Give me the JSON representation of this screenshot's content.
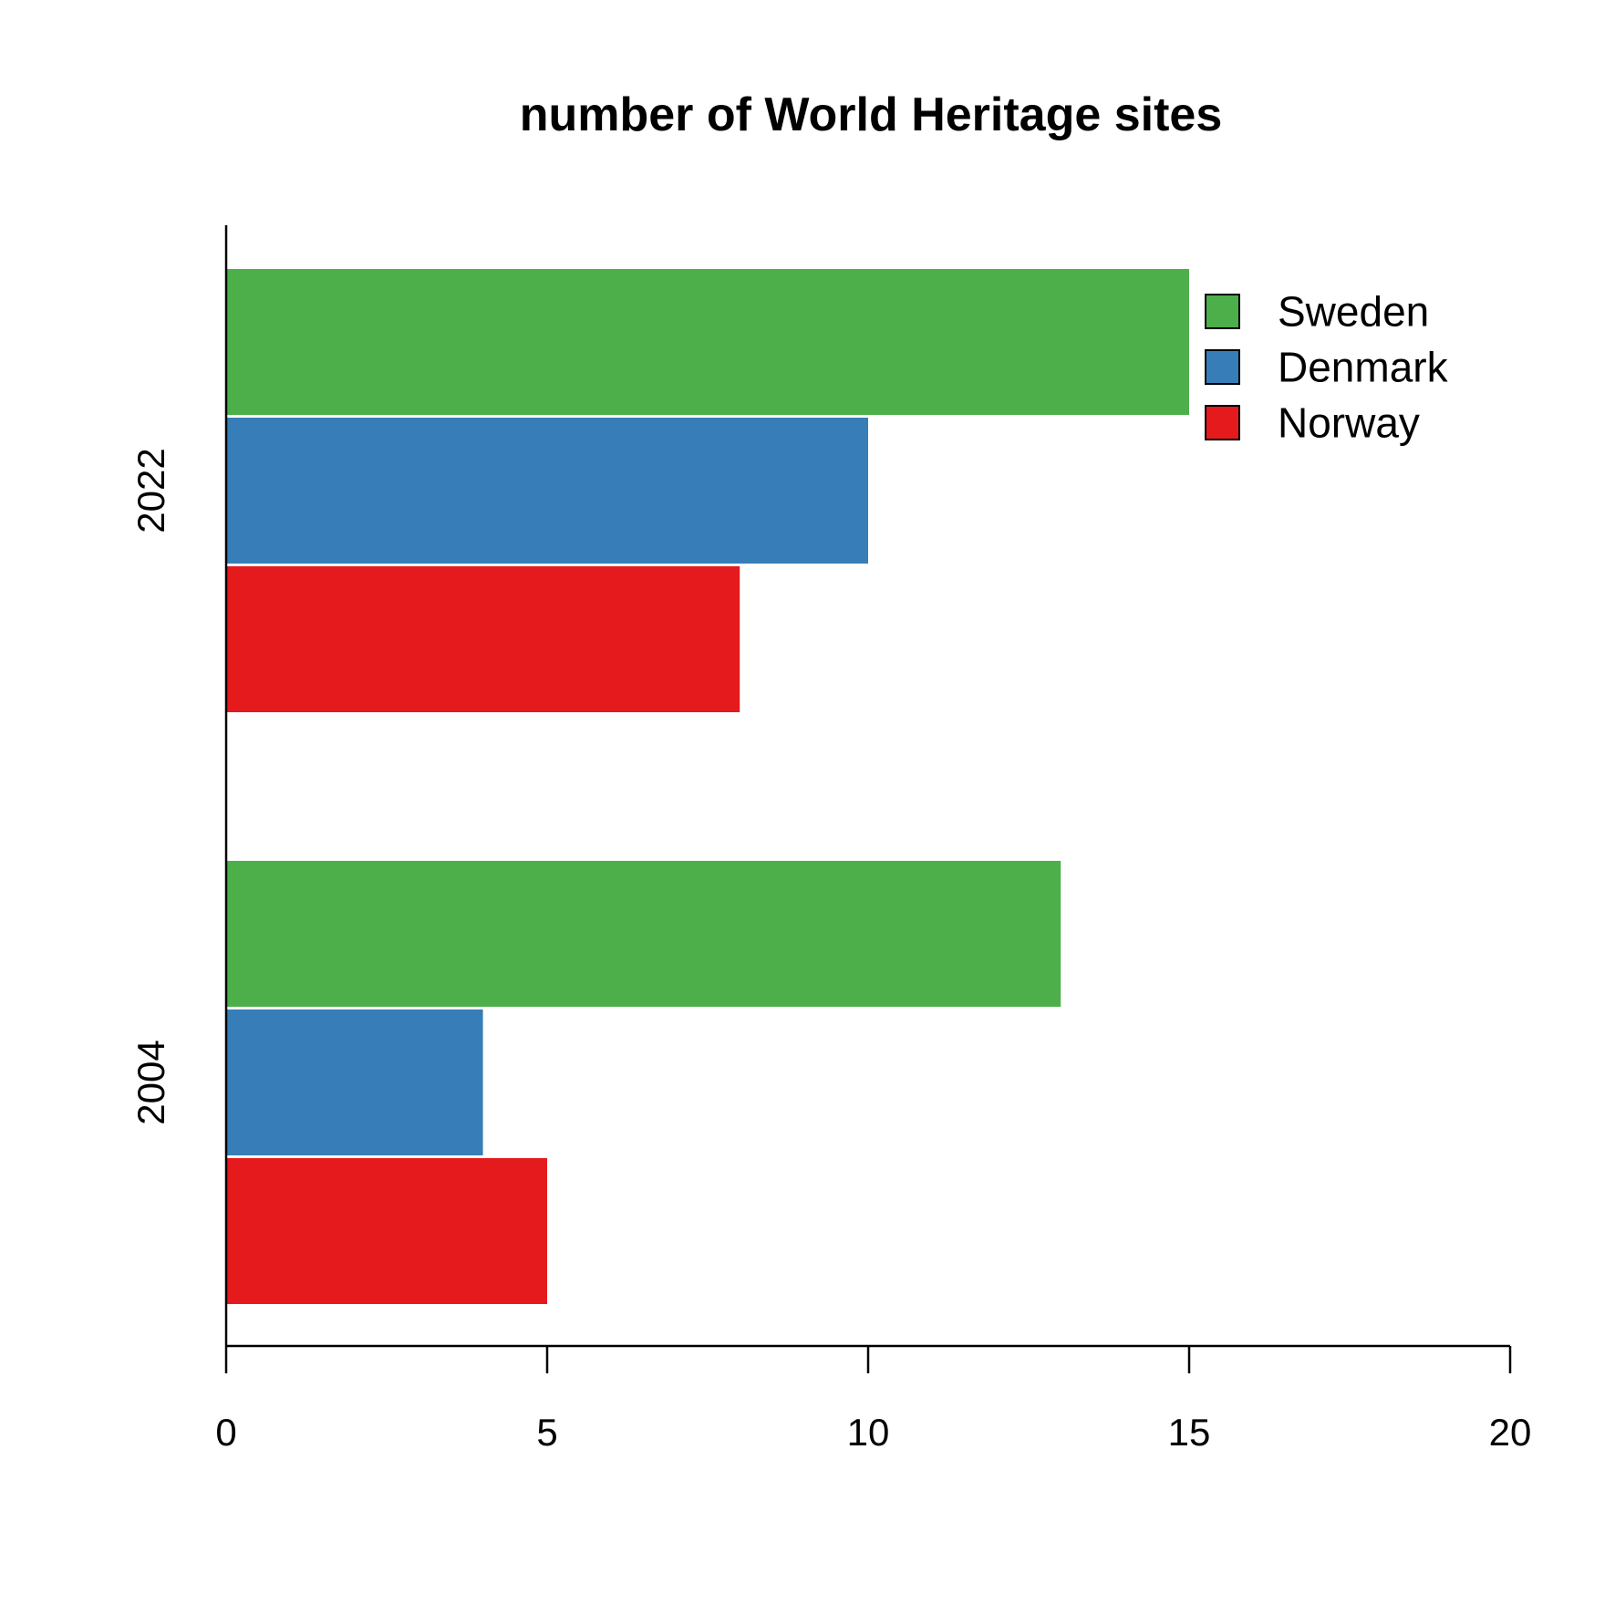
{
  "chart_data": {
    "type": "bar",
    "orientation": "horizontal",
    "title": "number of World Heritage sites",
    "xlabel": "",
    "ylabel": "",
    "categories": [
      "2004",
      "2022"
    ],
    "series": [
      {
        "name": "Norway",
        "color": "#E41A1C",
        "values": [
          5,
          8
        ]
      },
      {
        "name": "Denmark",
        "color": "#377EB8",
        "values": [
          4,
          10
        ]
      },
      {
        "name": "Sweden",
        "color": "#4DAF4A",
        "values": [
          13,
          15
        ]
      }
    ],
    "xlim": [
      0,
      20
    ],
    "xticks": [
      "0",
      "5",
      "10",
      "15",
      "20"
    ],
    "legend": {
      "placement": "top-right",
      "order": [
        "Sweden",
        "Denmark",
        "Norway"
      ]
    },
    "grid": false
  }
}
